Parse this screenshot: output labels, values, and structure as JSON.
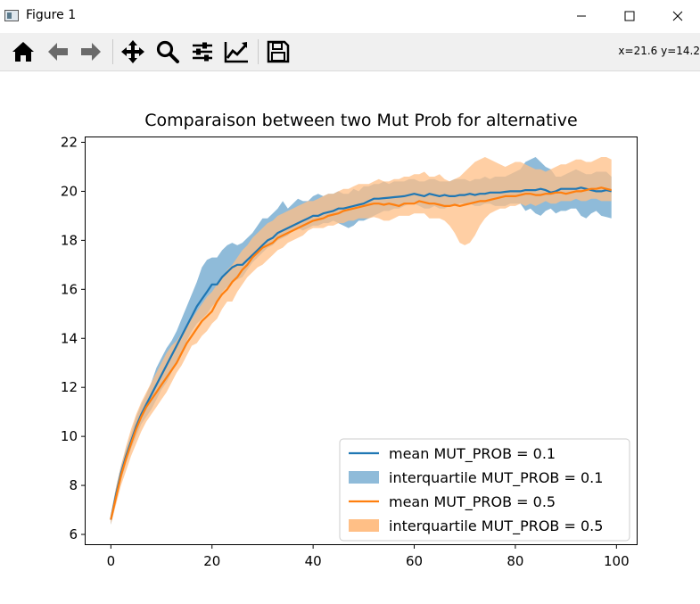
{
  "window": {
    "title": "Figure 1"
  },
  "toolbar": {
    "tools": [
      {
        "name": "home-icon"
      },
      {
        "name": "back-arrow-icon"
      },
      {
        "name": "forward-arrow-icon"
      },
      {
        "name": "pan-icon"
      },
      {
        "name": "zoom-icon"
      },
      {
        "name": "configure-subplots-icon"
      },
      {
        "name": "edit-axes-icon"
      },
      {
        "name": "save-icon"
      }
    ],
    "coords": "x=21.6 y=14.2"
  },
  "colors": {
    "blue": "#1f77b4",
    "orange": "#ff7f0e",
    "blue_fill": "#8fbbd9",
    "orange_fill": "#ffbf86"
  },
  "chart_data": {
    "type": "line",
    "title": "Comparaison between two Mut Prob for alternative",
    "xlabel": "",
    "ylabel": "",
    "xlim": [
      -5,
      104
    ],
    "ylim": [
      5.6,
      22.2
    ],
    "xticks": [
      0,
      20,
      40,
      60,
      80,
      100
    ],
    "yticks": [
      6,
      8,
      10,
      12,
      14,
      16,
      18,
      20,
      22
    ],
    "grid": false,
    "legend_position": "lower right",
    "x": [
      0,
      1,
      2,
      3,
      4,
      5,
      6,
      7,
      8,
      9,
      10,
      11,
      12,
      13,
      14,
      15,
      16,
      17,
      18,
      19,
      20,
      21,
      22,
      23,
      24,
      25,
      26,
      27,
      28,
      29,
      30,
      31,
      32,
      33,
      34,
      35,
      36,
      37,
      38,
      39,
      40,
      41,
      42,
      43,
      44,
      45,
      46,
      47,
      48,
      49,
      50,
      51,
      52,
      53,
      54,
      55,
      56,
      57,
      58,
      59,
      60,
      61,
      62,
      63,
      64,
      65,
      66,
      67,
      68,
      69,
      70,
      71,
      72,
      73,
      74,
      75,
      76,
      77,
      78,
      79,
      80,
      81,
      82,
      83,
      84,
      85,
      86,
      87,
      88,
      89,
      90,
      91,
      92,
      93,
      94,
      95,
      96,
      97,
      98,
      99
    ],
    "series": [
      {
        "name": "mean MUT_PROB = 0.1",
        "kind": "line",
        "color": "#1f77b4",
        "values": [
          6.6,
          7.6,
          8.5,
          9.2,
          9.8,
          10.4,
          10.9,
          11.3,
          11.7,
          12.1,
          12.5,
          12.9,
          13.3,
          13.7,
          14.1,
          14.5,
          14.9,
          15.3,
          15.6,
          15.9,
          16.2,
          16.2,
          16.5,
          16.7,
          16.9,
          17.0,
          17.0,
          17.2,
          17.4,
          17.6,
          17.8,
          18.0,
          18.1,
          18.3,
          18.4,
          18.5,
          18.6,
          18.7,
          18.8,
          18.9,
          19.0,
          19.0,
          19.1,
          19.15,
          19.2,
          19.3,
          19.3,
          19.35,
          19.4,
          19.45,
          19.5,
          19.6,
          19.7,
          19.7,
          19.72,
          19.74,
          19.76,
          19.78,
          19.8,
          19.85,
          19.9,
          19.85,
          19.8,
          19.9,
          19.85,
          19.8,
          19.85,
          19.8,
          19.8,
          19.85,
          19.85,
          19.9,
          19.85,
          19.9,
          19.9,
          19.95,
          19.95,
          19.95,
          19.98,
          20.0,
          20.0,
          20.0,
          20.05,
          20.05,
          20.05,
          20.1,
          20.05,
          19.95,
          20.0,
          20.1,
          20.1,
          20.1,
          20.1,
          20.15,
          20.1,
          20.05,
          20.0,
          20.0,
          20.05,
          20.0
        ]
      },
      {
        "name": "interquartile MUT_PROB = 0.1",
        "kind": "band",
        "color": "#8fbbd9",
        "lower": [
          6.4,
          7.3,
          8.2,
          8.9,
          9.5,
          10.0,
          10.5,
          10.8,
          11.1,
          11.5,
          11.9,
          12.2,
          12.6,
          13.0,
          13.4,
          13.9,
          14.3,
          14.6,
          14.8,
          15.0,
          15.3,
          15.5,
          15.9,
          16.1,
          16.3,
          16.4,
          16.5,
          16.8,
          17.1,
          17.3,
          17.5,
          17.7,
          17.8,
          18.0,
          18.1,
          18.2,
          18.4,
          18.5,
          18.4,
          18.5,
          18.6,
          18.6,
          18.7,
          18.7,
          18.8,
          18.7,
          18.6,
          18.5,
          18.6,
          18.8,
          18.8,
          18.9,
          19.0,
          19.1,
          19.2,
          19.2,
          19.3,
          19.3,
          19.4,
          19.5,
          19.5,
          19.4,
          19.3,
          19.3,
          19.4,
          19.3,
          19.3,
          19.4,
          19.4,
          19.5,
          19.5,
          19.5,
          19.4,
          19.4,
          19.5,
          19.5,
          19.4,
          19.4,
          19.4,
          19.5,
          19.5,
          19.5,
          19.2,
          19.3,
          19.1,
          19.0,
          19.2,
          19.3,
          19.1,
          19.2,
          19.2,
          19.3,
          19.3,
          19.0,
          18.9,
          19.1,
          19.2,
          19.0,
          18.95,
          18.9
        ],
        "upper": [
          6.8,
          7.9,
          8.8,
          9.5,
          10.1,
          10.8,
          11.3,
          11.7,
          12.2,
          12.8,
          13.2,
          13.6,
          13.9,
          14.3,
          14.8,
          15.3,
          15.8,
          16.3,
          16.9,
          17.2,
          17.3,
          17.3,
          17.6,
          17.8,
          17.9,
          17.8,
          17.9,
          18.1,
          18.3,
          18.6,
          18.9,
          18.9,
          19.1,
          19.3,
          19.6,
          19.3,
          19.5,
          19.7,
          19.6,
          19.6,
          19.8,
          19.9,
          19.8,
          19.9,
          19.9,
          20.0,
          19.9,
          19.9,
          20.1,
          20.0,
          20.2,
          20.2,
          20.3,
          20.3,
          20.4,
          20.3,
          20.4,
          20.4,
          20.4,
          20.5,
          20.5,
          20.4,
          20.4,
          20.5,
          20.5,
          20.4,
          20.4,
          20.4,
          20.5,
          20.5,
          20.5,
          20.4,
          20.5,
          20.5,
          20.6,
          20.5,
          20.6,
          20.6,
          20.6,
          20.7,
          20.8,
          20.9,
          21.2,
          21.3,
          21.4,
          21.2,
          21.0,
          20.9,
          20.6,
          20.6,
          20.7,
          20.8,
          20.9,
          20.8,
          20.7,
          20.7,
          20.8,
          20.8,
          20.8,
          20.6
        ]
      },
      {
        "name": "mean MUT_PROB = 0.5",
        "kind": "line",
        "color": "#ff7f0e",
        "values": [
          6.6,
          7.5,
          8.4,
          9.1,
          9.7,
          10.3,
          10.8,
          11.2,
          11.5,
          11.8,
          12.1,
          12.4,
          12.7,
          13.0,
          13.4,
          13.8,
          14.1,
          14.4,
          14.7,
          14.9,
          15.1,
          15.5,
          15.8,
          16.0,
          16.3,
          16.5,
          16.8,
          17.0,
          17.3,
          17.5,
          17.7,
          17.8,
          17.9,
          18.1,
          18.2,
          18.3,
          18.4,
          18.5,
          18.6,
          18.7,
          18.8,
          18.85,
          18.9,
          19.0,
          19.05,
          19.1,
          19.2,
          19.25,
          19.3,
          19.35,
          19.4,
          19.45,
          19.5,
          19.5,
          19.45,
          19.5,
          19.45,
          19.4,
          19.5,
          19.5,
          19.5,
          19.6,
          19.55,
          19.5,
          19.5,
          19.45,
          19.4,
          19.4,
          19.45,
          19.4,
          19.45,
          19.5,
          19.55,
          19.6,
          19.6,
          19.65,
          19.7,
          19.75,
          19.8,
          19.8,
          19.8,
          19.85,
          19.9,
          19.9,
          19.85,
          19.85,
          19.9,
          19.9,
          19.95,
          19.95,
          19.9,
          19.95,
          20.0,
          20.0,
          20.05,
          20.1,
          20.1,
          20.15,
          20.1,
          20.05
        ]
      },
      {
        "name": "interquartile MUT_PROB = 0.5",
        "kind": "band",
        "color": "#ffbf86",
        "lower": [
          6.4,
          7.2,
          8.0,
          8.6,
          9.2,
          9.7,
          10.2,
          10.6,
          10.9,
          11.2,
          11.5,
          11.8,
          12.2,
          12.6,
          12.9,
          13.3,
          13.7,
          13.8,
          14.1,
          14.3,
          14.6,
          14.8,
          15.2,
          15.5,
          15.5,
          15.9,
          16.2,
          16.5,
          16.7,
          16.9,
          17.0,
          17.2,
          17.4,
          17.6,
          17.7,
          17.9,
          18.0,
          18.1,
          18.2,
          18.4,
          18.5,
          18.5,
          18.5,
          18.6,
          18.6,
          18.7,
          18.7,
          18.8,
          18.8,
          18.9,
          18.9,
          18.9,
          18.95,
          18.9,
          18.8,
          18.8,
          18.9,
          19.0,
          19.0,
          19.0,
          19.1,
          19.1,
          19.1,
          18.9,
          18.9,
          18.9,
          18.8,
          18.6,
          18.3,
          17.9,
          17.8,
          17.9,
          18.2,
          18.6,
          18.9,
          19.1,
          19.2,
          19.3,
          19.3,
          19.4,
          19.4,
          19.5,
          19.4,
          19.5,
          19.4,
          19.5,
          19.6,
          19.5,
          19.5,
          19.6,
          19.6,
          19.6,
          19.7,
          19.6,
          19.6,
          19.7,
          19.7,
          19.6,
          19.6,
          19.6
        ],
        "upper": [
          6.8,
          7.9,
          8.8,
          9.6,
          10.3,
          10.9,
          11.4,
          11.8,
          12.2,
          12.6,
          13.0,
          13.4,
          13.7,
          13.9,
          14.2,
          14.5,
          14.8,
          15.1,
          15.4,
          15.7,
          15.9,
          16.2,
          16.5,
          16.8,
          17.0,
          17.3,
          17.6,
          17.8,
          18.1,
          18.3,
          18.5,
          18.7,
          18.8,
          19.0,
          19.1,
          19.2,
          19.3,
          19.4,
          19.5,
          19.6,
          19.6,
          19.7,
          19.8,
          19.9,
          19.9,
          20.0,
          20.1,
          20.1,
          20.2,
          20.3,
          20.3,
          20.3,
          20.4,
          20.5,
          20.4,
          20.4,
          20.5,
          20.5,
          20.6,
          20.6,
          20.7,
          20.7,
          20.8,
          20.6,
          20.6,
          20.7,
          20.5,
          20.4,
          20.5,
          20.6,
          20.8,
          21.0,
          21.2,
          21.3,
          21.4,
          21.3,
          21.2,
          21.1,
          21.0,
          21.1,
          21.2,
          21.2,
          21.1,
          21.0,
          20.9,
          20.9,
          20.8,
          20.9,
          21.0,
          21.1,
          21.1,
          21.2,
          21.3,
          21.3,
          21.2,
          21.2,
          21.3,
          21.4,
          21.4,
          21.3
        ]
      }
    ],
    "legend": [
      {
        "label": "mean MUT_PROB = 0.1",
        "kind": "line",
        "color": "#1f77b4"
      },
      {
        "label": "interquartile MUT_PROB = 0.1",
        "kind": "band",
        "color": "#8fbbd9"
      },
      {
        "label": "mean MUT_PROB = 0.5",
        "kind": "line",
        "color": "#ff7f0e"
      },
      {
        "label": "interquartile MUT_PROB = 0.5",
        "kind": "band",
        "color": "#ffbf86"
      }
    ]
  }
}
